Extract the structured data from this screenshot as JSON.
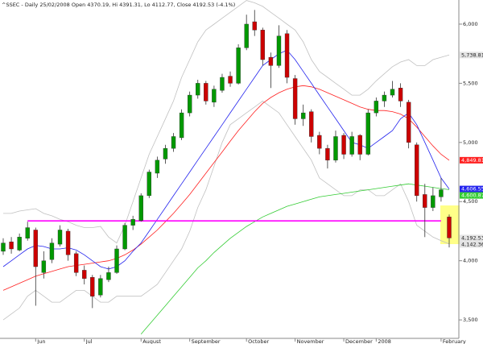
{
  "chart_data": {
    "type": "candlestick",
    "title": "^SSEC - Daily 25/02/2008 Open 4370.19, Hi 4391.31, Lo 4112.77, Close 4192.53 (-4.1%)",
    "up_color": "#009900",
    "down_color": "#cc0000",
    "candles": [
      [
        4080,
        4190,
        4050,
        4150
      ],
      [
        4160,
        4200,
        4060,
        4100
      ],
      [
        4090,
        4230,
        4080,
        4200
      ],
      [
        4190,
        4330,
        4170,
        4280
      ],
      [
        4260,
        4280,
        3620,
        3950
      ],
      [
        3900,
        4080,
        3850,
        4000
      ],
      [
        4010,
        4190,
        3980,
        4150
      ],
      [
        4140,
        4300,
        4120,
        4260
      ],
      [
        4250,
        4270,
        4000,
        4050
      ],
      [
        4060,
        4080,
        3870,
        3900
      ],
      [
        3920,
        3960,
        3800,
        3850
      ],
      [
        3860,
        3880,
        3600,
        3700
      ],
      [
        3710,
        3880,
        3690,
        3850
      ],
      [
        3840,
        3950,
        3820,
        3900
      ],
      [
        3900,
        4130,
        3890,
        4100
      ],
      [
        4100,
        4320,
        4090,
        4300
      ],
      [
        4300,
        4380,
        4260,
        4350
      ],
      [
        4340,
        4570,
        4330,
        4550
      ],
      [
        4550,
        4770,
        4530,
        4750
      ],
      [
        4740,
        4880,
        4700,
        4850
      ],
      [
        4860,
        4980,
        4820,
        4950
      ],
      [
        4950,
        5080,
        4920,
        5050
      ],
      [
        5040,
        5280,
        5020,
        5250
      ],
      [
        5250,
        5430,
        5220,
        5400
      ],
      [
        5400,
        5530,
        5370,
        5500
      ],
      [
        5500,
        5520,
        5320,
        5350
      ],
      [
        5340,
        5480,
        5300,
        5450
      ],
      [
        5440,
        5580,
        5420,
        5550
      ],
      [
        5560,
        5600,
        5470,
        5500
      ],
      [
        5500,
        5830,
        5490,
        5800
      ],
      [
        5800,
        6080,
        5780,
        6000
      ],
      [
        6020,
        6120,
        5900,
        5950
      ],
      [
        5950,
        5970,
        5650,
        5700
      ],
      [
        5720,
        5760,
        5460,
        5650
      ],
      [
        5650,
        5990,
        5630,
        5900
      ],
      [
        5920,
        5950,
        5500,
        5550
      ],
      [
        5540,
        5570,
        5150,
        5200
      ],
      [
        5200,
        5320,
        5140,
        5250
      ],
      [
        5260,
        5280,
        5000,
        5050
      ],
      [
        5060,
        5090,
        4900,
        4950
      ],
      [
        4950,
        4980,
        4780,
        4850
      ],
      [
        4850,
        5100,
        4830,
        5050
      ],
      [
        5060,
        5080,
        4860,
        4900
      ],
      [
        4900,
        5090,
        4880,
        5050
      ],
      [
        5060,
        5070,
        4850,
        4900
      ],
      [
        4900,
        5280,
        4890,
        5250
      ],
      [
        5250,
        5380,
        5220,
        5350
      ],
      [
        5350,
        5430,
        5300,
        5400
      ],
      [
        5400,
        5520,
        5380,
        5450
      ],
      [
        5460,
        5500,
        5300,
        5350
      ],
      [
        5340,
        5360,
        4950,
        5000
      ],
      [
        4980,
        5000,
        4500,
        4550
      ],
      [
        4560,
        4650,
        4200,
        4450
      ],
      [
        4450,
        4620,
        4420,
        4550
      ],
      [
        4540,
        4700,
        4500,
        4600
      ],
      [
        4370.19,
        4391.31,
        4112.77,
        4192.53
      ]
    ],
    "close_label": "4,192.53",
    "lines": [
      {
        "color": "#c0c0c0",
        "last_label": "5,738.81",
        "values": [
          4400,
          4400,
          4420,
          4430,
          4440,
          4400,
          4380,
          4350,
          4330,
          4300,
          4280,
          4280,
          4290,
          4200,
          4150,
          4300,
          4500,
          4700,
          4900,
          5050,
          5200,
          5350,
          5550,
          5700,
          5850,
          5950,
          6000,
          6050,
          6100,
          6150,
          6200,
          6180,
          6150,
          6100,
          6050,
          6000,
          5950,
          5850,
          5700,
          5600,
          5550,
          5500,
          5450,
          5400,
          5400,
          5450,
          5520,
          5580,
          5640,
          5680,
          5700,
          5650,
          5650,
          5700,
          5720,
          5738.81
        ]
      },
      {
        "color": "#c0c0c0",
        "last_label": "4,142.36",
        "values": [
          3500,
          3550,
          3600,
          3700,
          3750,
          3700,
          3650,
          3650,
          3700,
          3750,
          3750,
          3700,
          3650,
          3650,
          3700,
          3700,
          3700,
          3700,
          3750,
          3800,
          3900,
          4000,
          4100,
          4250,
          4450,
          4600,
          4800,
          5000,
          5150,
          5200,
          5250,
          5300,
          5350,
          5300,
          5250,
          5150,
          5050,
          4950,
          4850,
          4700,
          4650,
          4600,
          4550,
          4550,
          4600,
          4600,
          4550,
          4550,
          4600,
          4650,
          4500,
          4300,
          4250,
          4200,
          4170,
          4142.36
        ]
      },
      {
        "color": "#ff2020",
        "last_label": "4,849.81",
        "values": [
          3750,
          3780,
          3810,
          3840,
          3870,
          3890,
          3910,
          3930,
          3950,
          3960,
          3970,
          3980,
          3990,
          4000,
          4020,
          4050,
          4090,
          4140,
          4200,
          4260,
          4330,
          4400,
          4480,
          4560,
          4650,
          4740,
          4830,
          4920,
          5010,
          5100,
          5180,
          5260,
          5330,
          5380,
          5420,
          5450,
          5470,
          5480,
          5470,
          5450,
          5420,
          5390,
          5360,
          5330,
          5300,
          5280,
          5270,
          5270,
          5260,
          5240,
          5200,
          5130,
          5050,
          4970,
          4900,
          4849.81
        ]
      },
      {
        "color": "#33cc33",
        "last_label": "4,600.87",
        "values": [
          null,
          null,
          null,
          null,
          null,
          null,
          null,
          null,
          null,
          null,
          null,
          null,
          null,
          null,
          null,
          null,
          null,
          3380,
          3460,
          3540,
          3620,
          3700,
          3780,
          3860,
          3940,
          4000,
          4070,
          4130,
          4190,
          4240,
          4290,
          4330,
          4370,
          4400,
          4430,
          4460,
          4480,
          4500,
          4520,
          4540,
          4550,
          4560,
          4570,
          4580,
          4590,
          4600,
          4610,
          4620,
          4630,
          4640,
          4650,
          4640,
          4630,
          4620,
          4610,
          4600.87
        ]
      },
      {
        "color": "#2222ee",
        "last_label": "4,606.55",
        "values": [
          3950,
          4000,
          4050,
          4100,
          4130,
          4120,
          4100,
          4100,
          4110,
          4090,
          4050,
          4000,
          3950,
          3930,
          3950,
          4000,
          4080,
          4150,
          4250,
          4350,
          4450,
          4550,
          4650,
          4750,
          4850,
          4950,
          5050,
          5150,
          5250,
          5350,
          5450,
          5550,
          5650,
          5700,
          5750,
          5780,
          5700,
          5600,
          5500,
          5400,
          5300,
          5200,
          5100,
          5000,
          4980,
          4950,
          5000,
          5050,
          5100,
          5200,
          5250,
          5150,
          5000,
          4850,
          4700,
          4606.55
        ]
      }
    ],
    "support": {
      "value": 4337,
      "from": 3,
      "to": 54,
      "color": "#ff00ff"
    },
    "ylim": [
      3344,
      6204
    ],
    "yticks": [
      {
        "value": 3500,
        "label": "3,500"
      },
      {
        "value": 4000,
        "label": "4,000"
      },
      {
        "value": 4500,
        "label": "4,500"
      },
      {
        "value": 5000,
        "label": "5,000"
      },
      {
        "value": 5500,
        "label": "5,500"
      },
      {
        "value": 6000,
        "label": "6,000"
      }
    ],
    "xticks": [
      {
        "value": 4,
        "label": "Jun"
      },
      {
        "value": 10,
        "label": "Jul"
      },
      {
        "value": 17,
        "label": "August"
      },
      {
        "value": 23,
        "label": "September"
      },
      {
        "value": 30,
        "label": "October"
      },
      {
        "value": 36,
        "label": "November"
      },
      {
        "value": 42,
        "label": "December"
      },
      {
        "value": 46,
        "label": "2008"
      },
      {
        "value": 54,
        "label": "February"
      }
    ]
  }
}
